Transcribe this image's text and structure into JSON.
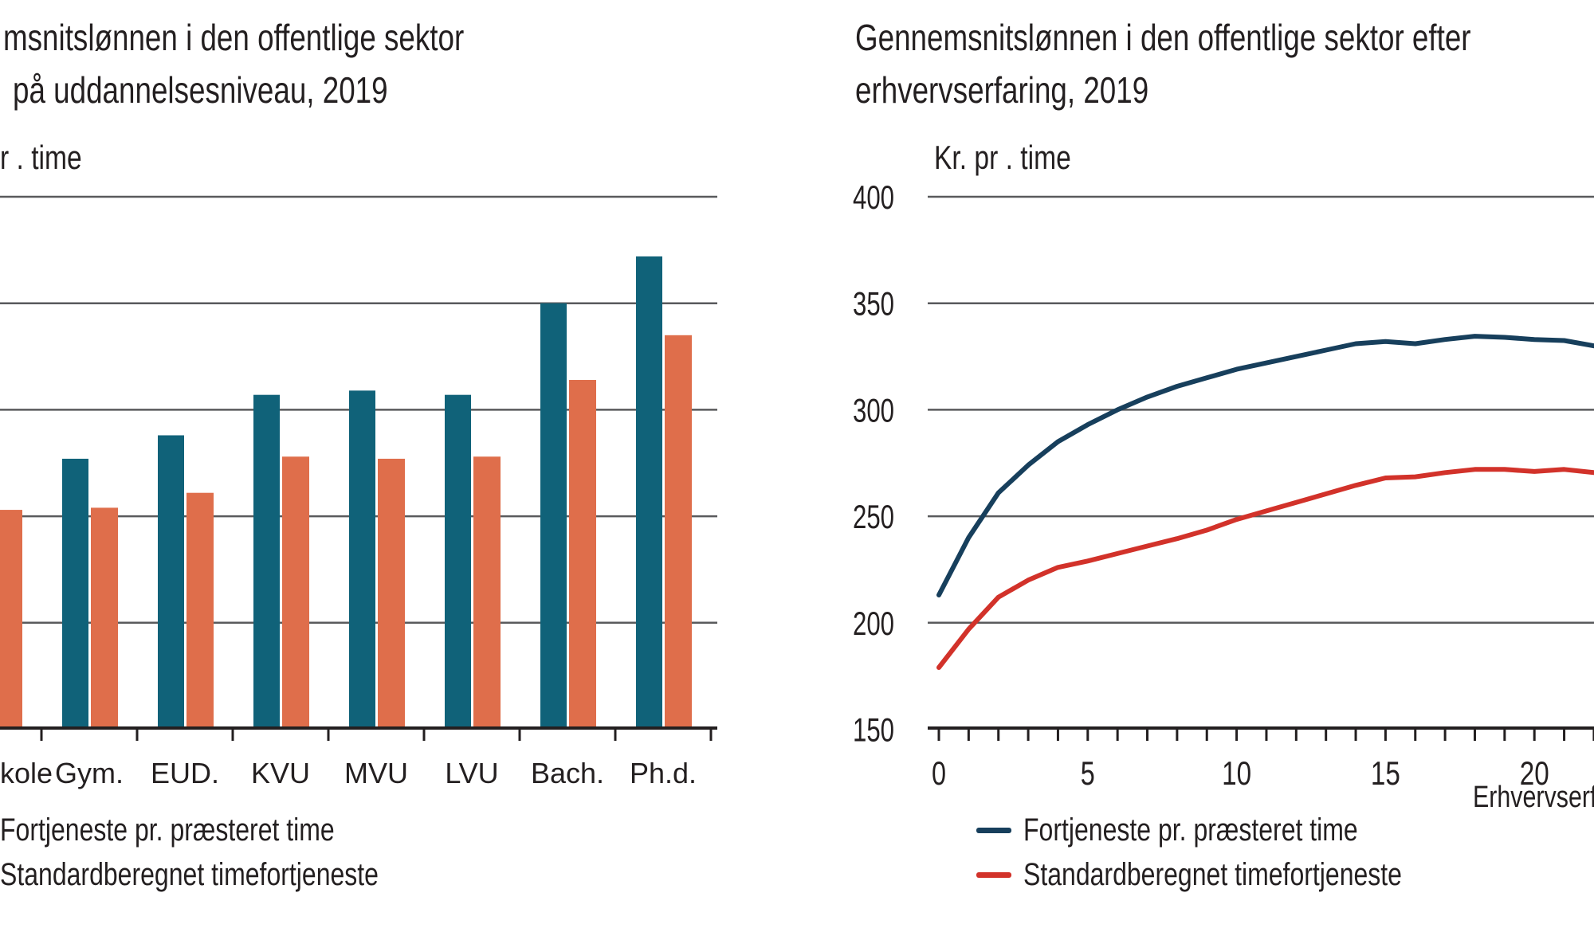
{
  "page": {
    "background": "#ffffff",
    "text_color": "#231F20",
    "grid_color": "#595A5C",
    "axis_color": "#231F20"
  },
  "chart_data": [
    {
      "type": "bar",
      "title_lines": [
        "msnitslønnen i den offentlige sektor",
        "på uddannelsesniveau, 2019"
      ],
      "ylabel": "r . time",
      "categories": [
        "kole",
        "Gym.",
        "EUD.",
        "KVU",
        "MVU",
        "LVU",
        "Bach.",
        "Ph.d."
      ],
      "series": [
        {
          "name": "Fortjeneste pr. præsteret time",
          "color": "#106279",
          "values": [
            null,
            277,
            288,
            307,
            309,
            307,
            350,
            372
          ]
        },
        {
          "name": "Standardberegnet timefortjeneste",
          "color": "#DF6E4B",
          "values": [
            253,
            254,
            261,
            278,
            277,
            278,
            314,
            335
          ]
        }
      ],
      "ylim": [
        150,
        400
      ],
      "grid_values": [
        200,
        250,
        300,
        350,
        400
      ],
      "grid": "on",
      "legend_position": "bottom-left",
      "note_first_category_clipped": "true"
    },
    {
      "type": "line",
      "title_lines": [
        "Gennemsnitslønnen i den offentlige sektor efter",
        "erhvervserfaring, 2019"
      ],
      "ylabel": "Kr. pr . time",
      "xlabel": "Erhvervserf",
      "x": [
        0,
        1,
        2,
        3,
        4,
        5,
        6,
        7,
        8,
        9,
        10,
        11,
        12,
        13,
        14,
        15,
        16,
        17,
        18,
        19,
        20,
        21,
        22
      ],
      "series": [
        {
          "name": "Fortjeneste pr. præsteret time",
          "color": "#173F5C",
          "values": [
            213,
            240,
            261,
            274,
            285,
            293,
            300,
            306,
            311,
            315,
            319,
            322,
            325,
            328,
            331,
            332,
            331,
            333,
            334.5,
            334,
            333,
            332.5,
            330
          ]
        },
        {
          "name": "Standardberegnet timefortjeneste",
          "color": "#D2322A",
          "values": [
            179,
            197,
            212,
            220,
            226,
            229,
            232.5,
            236,
            239.5,
            243.5,
            248.5,
            252.5,
            256.5,
            260.5,
            264.5,
            268,
            268.5,
            270.5,
            272,
            272,
            271,
            272,
            270.5
          ]
        }
      ],
      "ylim": [
        150,
        400
      ],
      "xlim": [
        0,
        22
      ],
      "yticks": [
        150,
        200,
        250,
        300,
        350,
        400
      ],
      "xticks_labeled": [
        0,
        5,
        10,
        15,
        20
      ],
      "grid": "on",
      "legend_position": "bottom"
    }
  ]
}
